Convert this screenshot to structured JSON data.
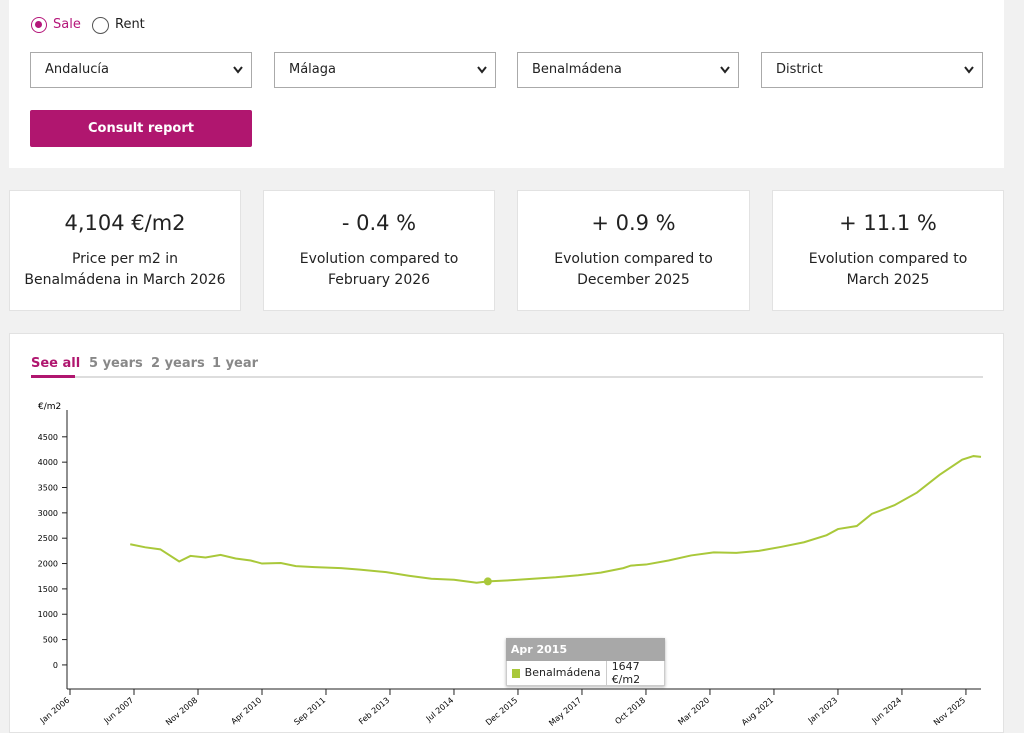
{
  "form": {
    "options": [
      "Sale",
      "Rent"
    ],
    "selects": [
      "Andalucía",
      "Málaga",
      "Benalmádena",
      "District"
    ],
    "button": "Consult report"
  },
  "cards": [
    {
      "value": "4,104 €/m2",
      "label": "Price per m2 in Benalmádena in March 2026"
    },
    {
      "value": "- 0.4 %",
      "label": "Evolution compared to February 2026"
    },
    {
      "value": "+ 0.9 %",
      "label": "Evolution compared to December 2025"
    },
    {
      "value": "+ 11.1 %",
      "label": "Evolution compared to March 2025"
    }
  ],
  "tabs": [
    "See all",
    "5 years",
    "2 years",
    "1 year"
  ],
  "chart_data": {
    "type": "line",
    "y_label": "€/m2",
    "x": [
      "May 2007",
      "Sep 2007",
      "Jan 2008",
      "Jun 2008",
      "Sep 2008",
      "Jan 2009",
      "May 2009",
      "Sep 2009",
      "Jan 2010",
      "Apr 2010",
      "Sep 2010",
      "Jan 2011",
      "Jun 2011",
      "Jan 2012",
      "Jun 2012",
      "Jan 2013",
      "Jul 2013",
      "Jan 2014",
      "Jul 2014",
      "Jan 2015",
      "Apr 2015",
      "Oct 2015",
      "Apr 2016",
      "Oct 2016",
      "Apr 2017",
      "Oct 2017",
      "Apr 2018",
      "Jun 2018",
      "Oct 2018",
      "Apr 2019",
      "Oct 2019",
      "Apr 2020",
      "Oct 2020",
      "Apr 2021",
      "Oct 2021",
      "Apr 2022",
      "Oct 2022",
      "Jan 2023",
      "Jun 2023",
      "Oct 2023",
      "Apr 2024",
      "Oct 2024",
      "Apr 2025",
      "Oct 2025",
      "Jan 2026",
      "Mar 2026"
    ],
    "series": [
      {
        "name": "Benalmádena",
        "color": "#a9c83a",
        "values": [
          2380,
          2320,
          2280,
          2040,
          2150,
          2120,
          2170,
          2100,
          2060,
          2000,
          2010,
          1950,
          1930,
          1910,
          1880,
          1830,
          1760,
          1700,
          1680,
          1620,
          1647,
          1670,
          1700,
          1730,
          1770,
          1820,
          1910,
          1960,
          1980,
          2060,
          2160,
          2220,
          2210,
          2250,
          2330,
          2420,
          2560,
          2680,
          2740,
          2980,
          3150,
          3400,
          3750,
          4050,
          4120,
          4104
        ],
        "value_labels": [
          null,
          null,
          null,
          null,
          null,
          null,
          null,
          null,
          null,
          null,
          null,
          null,
          null,
          null,
          null,
          null,
          null,
          null,
          null,
          null,
          "1647 €/m2",
          null,
          null,
          null,
          null,
          null,
          null,
          null,
          null,
          null,
          null,
          null,
          null,
          null,
          null,
          null,
          null,
          null,
          null,
          null,
          null,
          null,
          null,
          null,
          null,
          null
        ]
      }
    ],
    "xlim": [
      "Jan 2006",
      "Mar 2026"
    ],
    "xticks": [
      "Jan 2006",
      "Jun 2007",
      "Nov 2008",
      "Apr 2010",
      "Sep 2011",
      "Feb 2013",
      "Jul 2014",
      "Dec 2015",
      "May 2017",
      "Oct 2018",
      "Mar 2020",
      "Aug 2021",
      "Jan 2023",
      "Jun 2024",
      "Nov 2025"
    ],
    "ylim": [
      -475,
      4950
    ],
    "yticks": [
      0,
      500,
      1000,
      1500,
      2000,
      2500,
      3000,
      3500,
      4000,
      4500
    ]
  }
}
